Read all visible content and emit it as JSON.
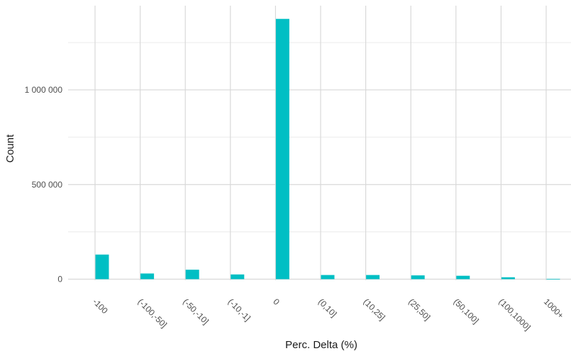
{
  "chart_data": {
    "type": "bar",
    "title": "",
    "xlabel": "Perc. Delta (%)",
    "ylabel": "Count",
    "categories": [
      "-100",
      "(-100,-50]",
      "(-50,-10]",
      "(-10,-1]",
      "0",
      "(0,10]",
      "(10,25]",
      "(25,50]",
      "(50,100]",
      "(100,1000]",
      "1000+"
    ],
    "values": [
      130000,
      30000,
      50000,
      25000,
      1375000,
      22000,
      22000,
      20000,
      18000,
      10000,
      1000
    ],
    "yticks": [
      0,
      500000,
      1000000
    ],
    "ytick_labels": [
      "0",
      "500 000",
      "1 000 000"
    ],
    "ylim": [
      -25000,
      1400000
    ],
    "bar_color": "#00BFC4",
    "grid": true,
    "legend": "none"
  }
}
